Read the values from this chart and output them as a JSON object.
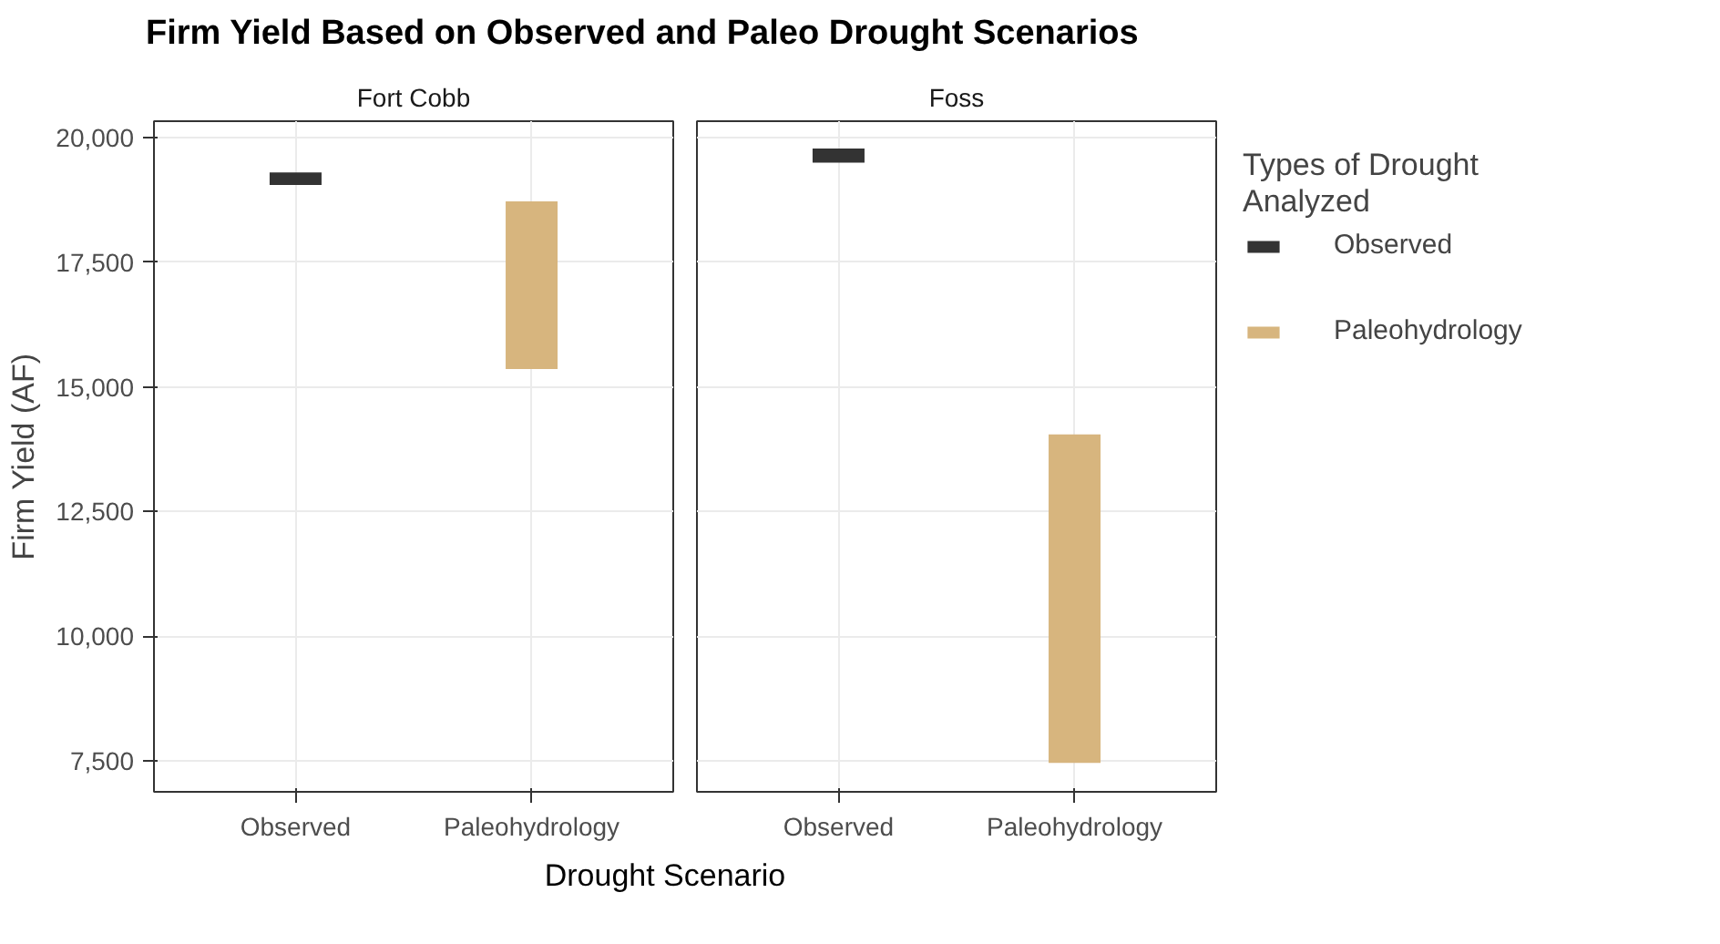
{
  "chart_data": [
    {
      "type": "bar",
      "title": "Firm Yield Based on Observed and Paleo Drought Scenarios",
      "subtitle": "Fort Cobb",
      "xlabel": "Drought Scenario",
      "ylabel": "Firm Yield (AF)",
      "categories": [
        "Observed",
        "Paleohydrology"
      ],
      "series": [
        {
          "color": "#333333",
          "values": [
            250,
            null
          ],
          "base": [
            19050,
            null
          ]
        },
        {
          "color": "#d7b57e",
          "values": [
            null,
            3360
          ],
          "base": [
            null,
            15360
          ]
        }
      ],
      "ylim": [
        6880,
        20330
      ],
      "yticks": [
        {
          "value": 7500,
          "label": "7,500"
        },
        {
          "value": 10000,
          "label": "10,000"
        },
        {
          "value": 12500,
          "label": "12,500"
        },
        {
          "value": 15000,
          "label": "15,000"
        },
        {
          "value": 17500,
          "label": "17,500"
        },
        {
          "value": 20000,
          "label": "20,000"
        }
      ],
      "grid": true
    },
    {
      "type": "bar",
      "subtitle": "Foss",
      "categories": [
        "Observed",
        "Paleohydrology"
      ],
      "series": [
        {
          "name": "Observed",
          "color": "#333333",
          "values": [
            280,
            null
          ],
          "base": [
            19500,
            null
          ]
        },
        {
          "name": "Paleohydrology",
          "color": "#d7b57e",
          "values": [
            null,
            6590
          ],
          "base": [
            null,
            7460
          ]
        }
      ],
      "ylim": [
        6880,
        20330
      ],
      "yticks": [
        7500,
        10000,
        12500,
        15000,
        17500,
        20000
      ],
      "grid": true,
      "tick_labels": "x",
      "legend": "right",
      "legend_title": "Types of Drought\nAnalyzed"
    }
  ]
}
